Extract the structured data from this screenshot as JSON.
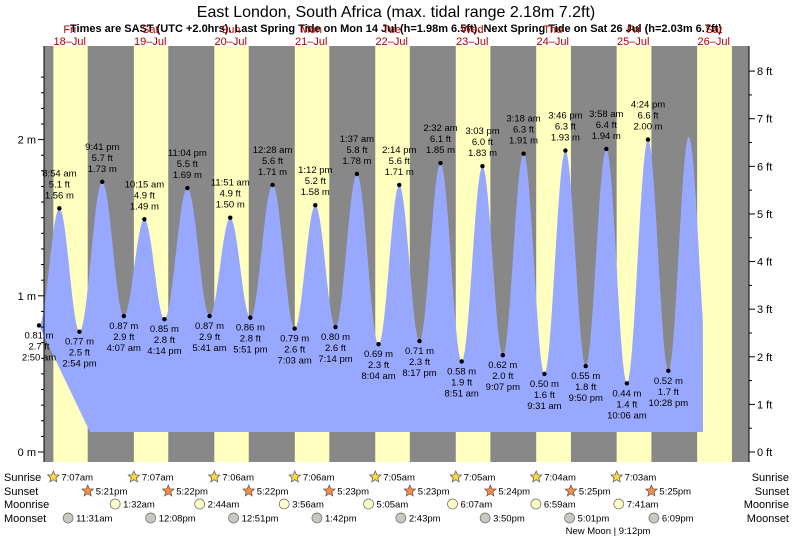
{
  "chart_data": {
    "type": "area",
    "title": "East London, South Africa (max. tidal range 2.18m 7.2ft)",
    "subtitle": "Times are SAST (UTC +2.0hrs). Last Spring Tide on Mon 14 Jul (h=1.98m 6.5ft). Next Spring Tide on Sat 26 Jul (h=2.03m 6.7ft)",
    "days": [
      {
        "dow": "Fri",
        "date": "18–Jul"
      },
      {
        "dow": "Sat",
        "date": "19–Jul"
      },
      {
        "dow": "Sun",
        "date": "20–Jul"
      },
      {
        "dow": "Mon",
        "date": "21–Jul"
      },
      {
        "dow": "Tue",
        "date": "22–Jul"
      },
      {
        "dow": "Wed",
        "date": "23–Jul"
      },
      {
        "dow": "Thu",
        "date": "24–Jul"
      },
      {
        "dow": "Fri",
        "date": "25–Jul"
      },
      {
        "dow": "Sat",
        "date": "26–Jul"
      }
    ],
    "y_left_ticks": [
      "0 m",
      "1 m",
      "2 m"
    ],
    "y_right_ticks": [
      "0 ft",
      "1 ft",
      "2 ft",
      "3 ft",
      "4 ft",
      "5 ft",
      "6 ft",
      "7 ft",
      "8 ft"
    ],
    "ylim_m": [
      -0.02,
      2.5
    ],
    "tides": [
      {
        "day": 0,
        "time": "2:50 am",
        "m": "0.81 m",
        "ft": "2.7 ft",
        "h": 0.81,
        "type": "low"
      },
      {
        "day": 0,
        "time": "8:54 am",
        "m": "1.56 m",
        "ft": "5.1 ft",
        "h": 1.56,
        "type": "high"
      },
      {
        "day": 0,
        "time": "2:54 pm",
        "m": "0.77 m",
        "ft": "2.5 ft",
        "h": 0.77,
        "type": "low"
      },
      {
        "day": 0,
        "time": "9:41 pm",
        "m": "1.73 m",
        "ft": "5.7 ft",
        "h": 1.73,
        "type": "high"
      },
      {
        "day": 1,
        "time": "4:07 am",
        "m": "0.87 m",
        "ft": "2.9 ft",
        "h": 0.87,
        "type": "low"
      },
      {
        "day": 1,
        "time": "10:15 am",
        "m": "1.49 m",
        "ft": "4.9 ft",
        "h": 1.49,
        "type": "high"
      },
      {
        "day": 1,
        "time": "4:14 pm",
        "m": "0.85 m",
        "ft": "2.8 ft",
        "h": 0.85,
        "type": "low"
      },
      {
        "day": 1,
        "time": "11:04 pm",
        "m": "1.69 m",
        "ft": "5.5 ft",
        "h": 1.69,
        "type": "high"
      },
      {
        "day": 2,
        "time": "5:41 am",
        "m": "0.87 m",
        "ft": "2.9 ft",
        "h": 0.87,
        "type": "low"
      },
      {
        "day": 2,
        "time": "11:51 am",
        "m": "1.50 m",
        "ft": "4.9 ft",
        "h": 1.5,
        "type": "high"
      },
      {
        "day": 2,
        "time": "5:51 pm",
        "m": "0.86 m",
        "ft": "2.8 ft",
        "h": 0.86,
        "type": "low"
      },
      {
        "day": 3,
        "time": "12:28 am",
        "m": "1.71 m",
        "ft": "5.6 ft",
        "h": 1.71,
        "type": "high"
      },
      {
        "day": 3,
        "time": "7:03 am",
        "m": "0.79 m",
        "ft": "2.6 ft",
        "h": 0.79,
        "type": "low"
      },
      {
        "day": 3,
        "time": "1:12 pm",
        "m": "1.58 m",
        "ft": "5.2 ft",
        "h": 1.58,
        "type": "high"
      },
      {
        "day": 3,
        "time": "7:14 pm",
        "m": "0.80 m",
        "ft": "2.6 ft",
        "h": 0.8,
        "type": "low"
      },
      {
        "day": 4,
        "time": "1:37 am",
        "m": "1.78 m",
        "ft": "5.8 ft",
        "h": 1.78,
        "type": "high"
      },
      {
        "day": 4,
        "time": "8:04 am",
        "m": "0.69 m",
        "ft": "2.3 ft",
        "h": 0.69,
        "type": "low"
      },
      {
        "day": 4,
        "time": "2:14 pm",
        "m": "1.71 m",
        "ft": "5.6 ft",
        "h": 1.71,
        "type": "high"
      },
      {
        "day": 4,
        "time": "8:17 pm",
        "m": "0.71 m",
        "ft": "2.3 ft",
        "h": 0.71,
        "type": "low"
      },
      {
        "day": 5,
        "time": "2:32 am",
        "m": "1.85 m",
        "ft": "6.1 ft",
        "h": 1.85,
        "type": "high"
      },
      {
        "day": 5,
        "time": "8:51 am",
        "m": "0.58 m",
        "ft": "1.9 ft",
        "h": 0.58,
        "type": "low"
      },
      {
        "day": 5,
        "time": "3:03 pm",
        "m": "1.83 m",
        "ft": "6.0 ft",
        "h": 1.83,
        "type": "high"
      },
      {
        "day": 5,
        "time": "9:07 pm",
        "m": "0.62 m",
        "ft": "2.0 ft",
        "h": 0.62,
        "type": "low"
      },
      {
        "day": 6,
        "time": "3:18 am",
        "m": "1.91 m",
        "ft": "6.3 ft",
        "h": 1.91,
        "type": "high"
      },
      {
        "day": 6,
        "time": "9:31 am",
        "m": "0.50 m",
        "ft": "1.6 ft",
        "h": 0.5,
        "type": "low"
      },
      {
        "day": 6,
        "time": "3:46 pm",
        "m": "1.93 m",
        "ft": "6.3 ft",
        "h": 1.93,
        "type": "high"
      },
      {
        "day": 6,
        "time": "9:50 pm",
        "m": "0.55 m",
        "ft": "1.8 ft",
        "h": 0.55,
        "type": "low"
      },
      {
        "day": 7,
        "time": "3:58 am",
        "m": "1.94 m",
        "ft": "6.4 ft",
        "h": 1.94,
        "type": "high"
      },
      {
        "day": 7,
        "time": "10:06 am",
        "m": "0.44 m",
        "ft": "1.4 ft",
        "h": 0.44,
        "type": "low"
      },
      {
        "day": 7,
        "time": "4:24 pm",
        "m": "2.00 m",
        "ft": "6.6 ft",
        "h": 2.0,
        "type": "high"
      },
      {
        "day": 7,
        "time": "10:28 pm",
        "m": "0.52 m",
        "ft": "1.7 ft",
        "h": 0.52,
        "type": "low"
      }
    ],
    "rows": {
      "sunrise": {
        "label": "Sunrise",
        "times": [
          "7:07am",
          "7:07am",
          "7:06am",
          "7:06am",
          "7:05am",
          "7:05am",
          "7:04am",
          "7:03am"
        ]
      },
      "sunset": {
        "label": "Sunset",
        "times": [
          "5:21pm",
          "5:22pm",
          "5:22pm",
          "5:23pm",
          "5:23pm",
          "5:24pm",
          "5:25pm",
          "5:25pm"
        ]
      },
      "moonrise": {
        "label": "Moonrise",
        "times": [
          "",
          "1:32am",
          "2:44am",
          "3:56am",
          "5:05am",
          "6:07am",
          "6:59am",
          "7:41am"
        ]
      },
      "moonset": {
        "label": "Moonset",
        "times": [
          "11:31am",
          "12:08pm",
          "12:51pm",
          "1:42pm",
          "2:43pm",
          "3:50pm",
          "5:01pm",
          "6:09pm"
        ]
      }
    },
    "note": "New Moon | 9:12pm",
    "colors": {
      "night": "#888888",
      "day": "#ffffc0",
      "water": "#99a8ff",
      "sun": "#ffd840",
      "sunset": "#ff8c40",
      "moonrise": "#ffffc8",
      "moonset": "#c8c8c0",
      "day_label": "#b00000"
    }
  }
}
